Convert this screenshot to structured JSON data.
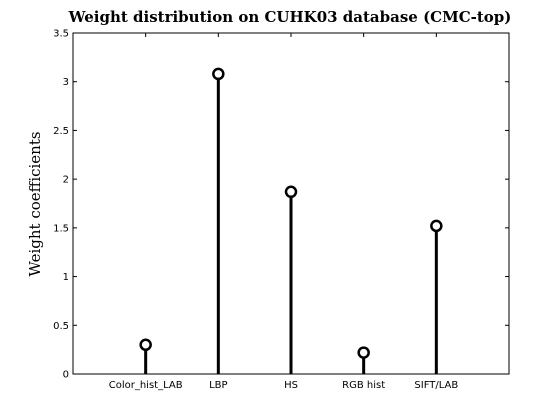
{
  "chart_data": {
    "type": "stem",
    "title": "Weight distribution on CUHK03 database (CMC-top)",
    "xlabel": "",
    "ylabel": "Weight coefficients",
    "categories": [
      "Color_hist_LAB",
      "LBP",
      "HS",
      "RGB hist",
      "SIFT/LAB"
    ],
    "values": [
      0.3,
      3.08,
      1.87,
      0.22,
      1.52
    ],
    "ylim": [
      0,
      3.5
    ],
    "yticks": [
      "0",
      "0.5",
      "1",
      "1.5",
      "2",
      "2.5",
      "3",
      "3.5"
    ],
    "grid": false,
    "marker": "circle",
    "color": "#000000"
  }
}
